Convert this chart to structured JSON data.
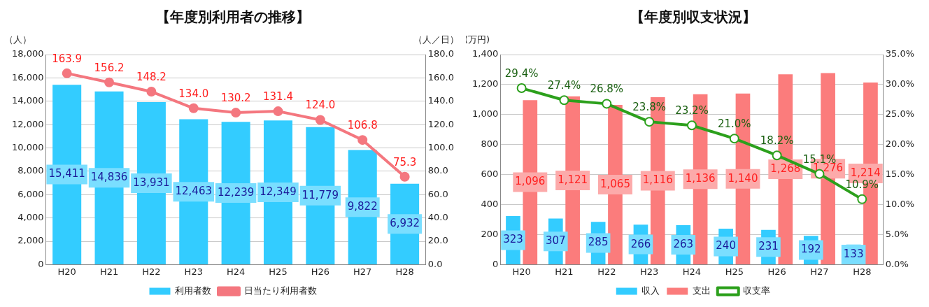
{
  "chart_data": [
    {
      "type": "bar",
      "title": "【年度別利用者の推移】",
      "ylabel": "（人）",
      "y2label": "（人／日）",
      "categories": [
        "H20",
        "H21",
        "H22",
        "H23",
        "H24",
        "H25",
        "H26",
        "H27",
        "H28"
      ],
      "series": [
        {
          "name": "利用者数",
          "color": "#33ccff",
          "values": [
            15411,
            14836,
            13931,
            12463,
            12239,
            12349,
            11779,
            9822,
            6932
          ],
          "value_labels": [
            "15,411",
            "14,836",
            "13,931",
            "12,463",
            "12,239",
            "12,349",
            "11,779",
            "9,822",
            "6,932"
          ]
        },
        {
          "name": "日当たり利用者数",
          "type": "line",
          "axis": "y2",
          "color": "#f4777f",
          "marker": "circle",
          "values": [
            163.9,
            156.2,
            148.2,
            134.0,
            130.2,
            131.4,
            124.0,
            106.8,
            75.3
          ],
          "value_labels": [
            "163.9",
            "156.2",
            "148.2",
            "134.0",
            "130.2",
            "131.4",
            "124.0",
            "106.8",
            "75.3"
          ]
        }
      ],
      "ylim": [
        0,
        18000
      ],
      "yticks": [
        {
          "value": 0,
          "label": "0"
        },
        {
          "value": 2000,
          "label": "2,000"
        },
        {
          "value": 4000,
          "label": "4,000"
        },
        {
          "value": 6000,
          "label": "6,000"
        },
        {
          "value": 8000,
          "label": "8,000"
        },
        {
          "value": 10000,
          "label": "10,000"
        },
        {
          "value": 12000,
          "label": "12,000"
        },
        {
          "value": 14000,
          "label": "14,000"
        },
        {
          "value": 16000,
          "label": "16,000"
        },
        {
          "value": 18000,
          "label": "18,000"
        }
      ],
      "y2lim": [
        0,
        180
      ],
      "y2ticks": [
        {
          "value": 0,
          "label": "0.0"
        },
        {
          "value": 20,
          "label": "20.0"
        },
        {
          "value": 40,
          "label": "40.0"
        },
        {
          "value": 60,
          "label": "60.0"
        },
        {
          "value": 80,
          "label": "80.0"
        },
        {
          "value": 100,
          "label": "100.0"
        },
        {
          "value": 120,
          "label": "120.0"
        },
        {
          "value": 140,
          "label": "140.0"
        },
        {
          "value": 160,
          "label": "160.0"
        },
        {
          "value": 180,
          "label": "180.0"
        }
      ],
      "grid": "y",
      "legend": "bottom"
    },
    {
      "type": "bar",
      "title": "【年度別収支状況】",
      "ylabel": "(万円)",
      "categories": [
        "H20",
        "H21",
        "H22",
        "H23",
        "H24",
        "H25",
        "H26",
        "H27",
        "H28"
      ],
      "series": [
        {
          "name": "収入",
          "color": "#33ccff",
          "values": [
            323,
            307,
            285,
            266,
            263,
            240,
            231,
            192,
            133
          ],
          "value_labels": [
            "323",
            "307",
            "285",
            "266",
            "263",
            "240",
            "231",
            "192",
            "133"
          ]
        },
        {
          "name": "支出",
          "color": "#fb7c7c",
          "values": [
            1096,
            1121,
            1065,
            1116,
            1136,
            1140,
            1268,
            1276,
            1214
          ],
          "value_labels": [
            "1,096",
            "1,121",
            "1,065",
            "1,116",
            "1,136",
            "1,140",
            "1,268",
            "1,276",
            "1,214"
          ]
        },
        {
          "name": "収支率",
          "type": "line",
          "axis": "y2",
          "color": "#2ca01c",
          "marker": "circle",
          "values": [
            29.4,
            27.4,
            26.8,
            23.8,
            23.2,
            21.0,
            18.2,
            15.1,
            10.9
          ],
          "value_labels": [
            "29.4%",
            "27.4%",
            "26.8%",
            "23.8%",
            "23.2%",
            "21.0%",
            "18.2%",
            "15.1%",
            "10.9%"
          ]
        }
      ],
      "ylim": [
        0,
        1400
      ],
      "yticks": [
        {
          "value": 0,
          "label": "0"
        },
        {
          "value": 200,
          "label": "200"
        },
        {
          "value": 400,
          "label": "400"
        },
        {
          "value": 600,
          "label": "600"
        },
        {
          "value": 800,
          "label": "800"
        },
        {
          "value": 1000,
          "label": "1,000"
        },
        {
          "value": 1200,
          "label": "1,200"
        },
        {
          "value": 1400,
          "label": "1,400"
        }
      ],
      "y2lim": [
        0,
        35
      ],
      "y2ticks": [
        {
          "value": 0,
          "label": "0.0%"
        },
        {
          "value": 5,
          "label": "5.0%"
        },
        {
          "value": 10,
          "label": "10.0%"
        },
        {
          "value": 15,
          "label": "15.0%"
        },
        {
          "value": 20,
          "label": "20.0%"
        },
        {
          "value": 25,
          "label": "25.0%"
        },
        {
          "value": 30,
          "label": "30.0%"
        },
        {
          "value": 35,
          "label": "35.0%"
        }
      ],
      "grid": "y",
      "legend": "bottom"
    }
  ]
}
